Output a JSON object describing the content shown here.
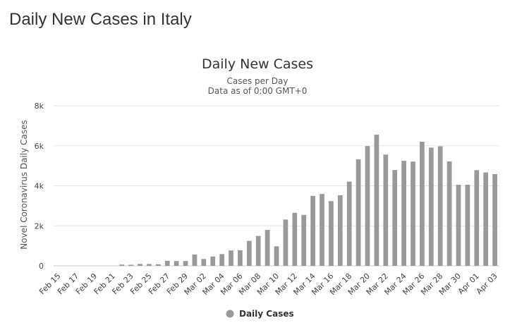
{
  "page": {
    "title": "Daily New Cases in Italy"
  },
  "colors": {
    "bar": "#999999",
    "grid": "#e6e6e6",
    "axis": "#cccccc"
  },
  "chart_data": {
    "type": "bar",
    "title": "Daily New Cases",
    "subtitle": "Cases per Day",
    "subtitle2": "Data as of 0:00 GMT+0",
    "ylabel": "Novel Coronavirus Daily Cases",
    "xlabel": "",
    "ylim": [
      0,
      8000
    ],
    "yticks": [
      0,
      2000,
      4000,
      6000,
      8000
    ],
    "ytick_labels": [
      "0",
      "2k",
      "4k",
      "6k",
      "8k"
    ],
    "grid": true,
    "legend": {
      "position": "bottom-center",
      "entries": [
        "Daily Cases"
      ]
    },
    "categories": [
      "Feb 15",
      "Feb 16",
      "Feb 17",
      "Feb 18",
      "Feb 19",
      "Feb 20",
      "Feb 21",
      "Feb 22",
      "Feb 23",
      "Feb 24",
      "Feb 25",
      "Feb 26",
      "Feb 27",
      "Feb 28",
      "Feb 29",
      "Mar 01",
      "Mar 02",
      "Mar 03",
      "Mar 04",
      "Mar 05",
      "Mar 06",
      "Mar 07",
      "Mar 08",
      "Mar 09",
      "Mar 10",
      "Mar 11",
      "Mar 12",
      "Mar 13",
      "Mar 14",
      "Mar 15",
      "Mar 16",
      "Mar 17",
      "Mar 18",
      "Mar 19",
      "Mar 20",
      "Mar 21",
      "Mar 22",
      "Mar 23",
      "Mar 24",
      "Mar 25",
      "Mar 26",
      "Mar 27",
      "Mar 28",
      "Mar 29",
      "Mar 30",
      "Mar 31",
      "Apr 01",
      "Apr 02",
      "Apr 03"
    ],
    "xtick_labels": [
      "Feb 15",
      "Feb 17",
      "Feb 19",
      "Feb 21",
      "Feb 23",
      "Feb 25",
      "Feb 27",
      "Feb 29",
      "Mar 02",
      "Mar 04",
      "Mar 06",
      "Mar 08",
      "Mar 10",
      "Mar 12",
      "Mar 14",
      "Mar 16",
      "Mar 18",
      "Mar 20",
      "Mar 22",
      "Mar 24",
      "Mar 26",
      "Mar 28",
      "Mar 30",
      "Apr 01",
      "Apr 03"
    ],
    "series": [
      {
        "name": "Daily Cases",
        "values": [
          0,
          0,
          0,
          0,
          0,
          0,
          0,
          62,
          53,
          97,
          93,
          78,
          250,
          238,
          240,
          566,
          342,
          466,
          587,
          769,
          778,
          1247,
          1492,
          1797,
          977,
          2313,
          2651,
          2547,
          3497,
          3590,
          3233,
          3526,
          4207,
          5322,
          5986,
          6557,
          5560,
          4789,
          5249,
          5210,
          6203,
          5909,
          5974,
          5217,
          4050,
          4053,
          4782,
          4668,
          4585
        ]
      }
    ]
  }
}
